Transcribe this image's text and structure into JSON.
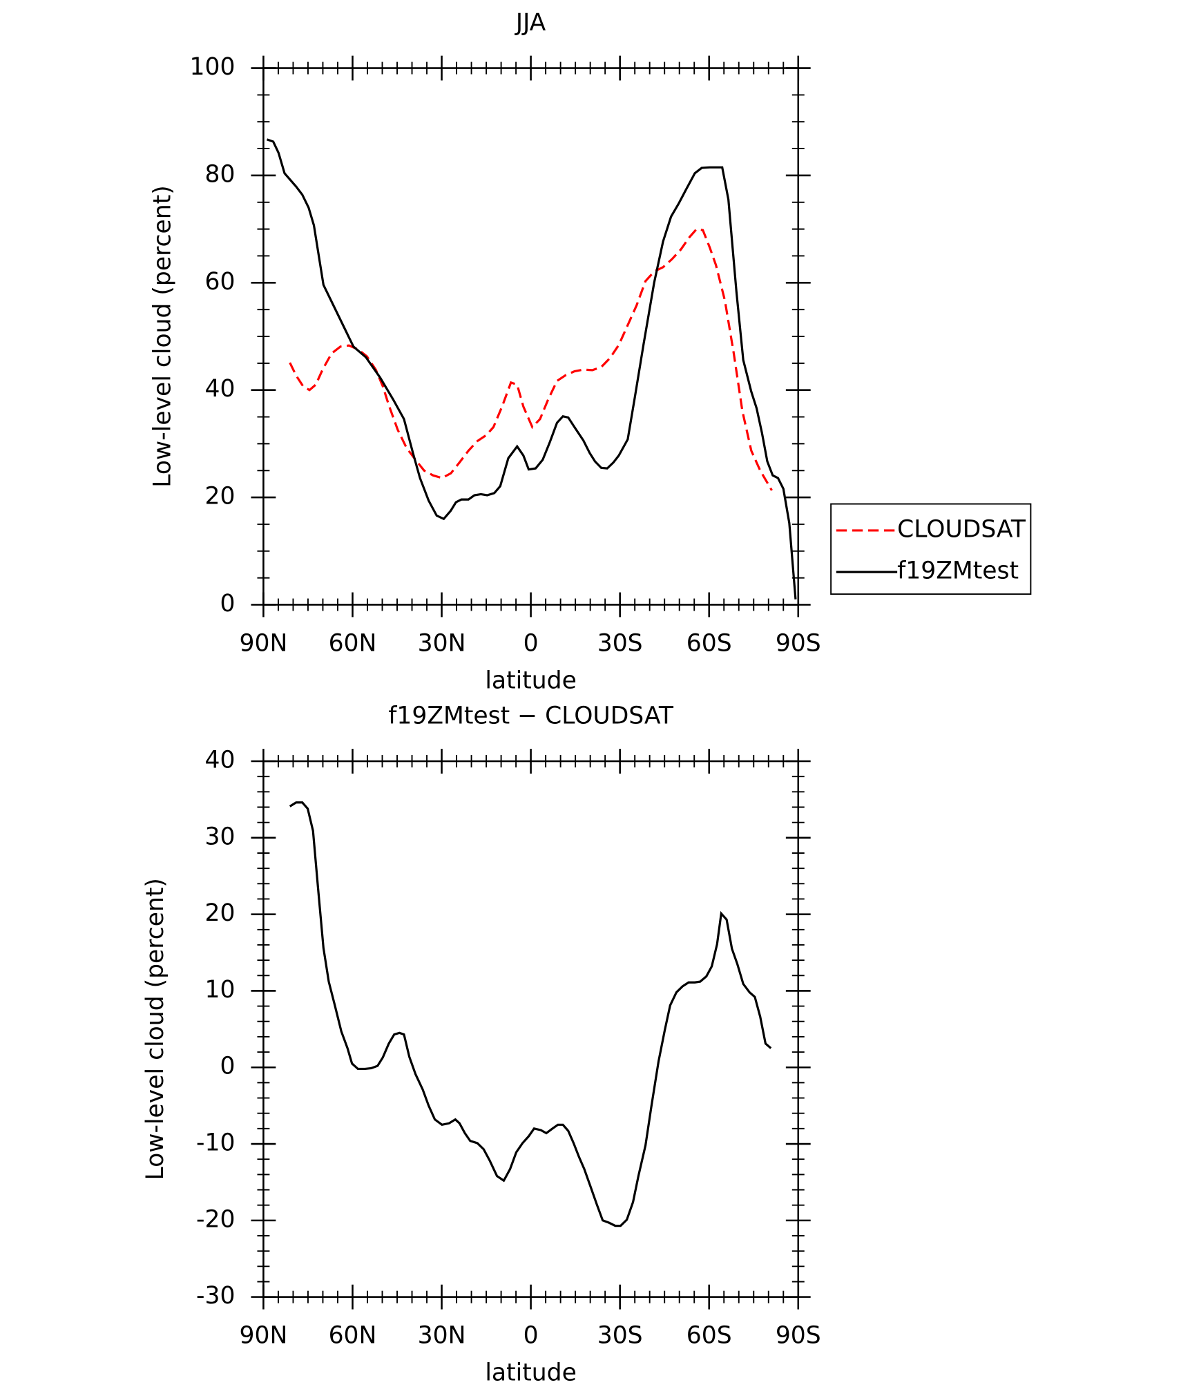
{
  "chart_data": [
    {
      "type": "line",
      "title": "JJA",
      "xlabel": "latitude",
      "ylabel": "Low-level cloud (percent)",
      "xlim": [
        90,
        -90
      ],
      "xticks": [
        {
          "value": 90,
          "label": "90N"
        },
        {
          "value": 60,
          "label": "60N"
        },
        {
          "value": 30,
          "label": "30N"
        },
        0,
        {
          "value": -30,
          "label": "30S"
        },
        {
          "value": -60,
          "label": "60S"
        },
        {
          "value": -90,
          "label": "90S"
        }
      ],
      "ylim": [
        0,
        100
      ],
      "yticks": [
        0,
        20,
        40,
        60,
        80,
        100
      ],
      "legend": "right",
      "series": [
        {
          "name": "CLOUDSAT",
          "color": "#ff0000",
          "style": "dashed",
          "x": [
            81.1,
            79.0,
            76.6,
            74.5,
            72.4,
            70.1,
            67.1,
            64.1,
            61.2,
            58.2,
            55.2,
            52.2,
            49.8,
            47.8,
            44.8,
            41.8,
            38.8,
            35.9,
            32.9,
            29.9,
            26.9,
            24.0,
            21.0,
            18.0,
            15.0,
            12.6,
            9.7,
            6.7,
            4.6,
            2.5,
            -0.5,
            -3.1,
            -5.8,
            -8.8,
            -11.8,
            -14.7,
            -17.7,
            -20.7,
            -23.7,
            -26.7,
            -29.6,
            -32.6,
            -35.6,
            -38.6,
            -41.5,
            -44.5,
            -47.5,
            -50.5,
            -53.4,
            -55.8,
            -57.9,
            -60.2,
            -62.3,
            -65.3,
            -68.3,
            -71.2,
            -74.2,
            -77.2,
            -81.1
          ],
          "values": [
            45.1,
            42.7,
            40.7,
            40.0,
            41.0,
            43.8,
            46.8,
            48.1,
            48.3,
            47.6,
            46.3,
            43.8,
            40.7,
            37.2,
            32.6,
            29.2,
            27.0,
            25.0,
            24.1,
            23.6,
            24.5,
            26.5,
            28.7,
            30.5,
            31.6,
            33.1,
            36.9,
            41.4,
            41.0,
            36.9,
            33.1,
            34.6,
            38.2,
            41.7,
            42.8,
            43.5,
            43.8,
            43.7,
            44.3,
            46.0,
            48.4,
            52.1,
            55.8,
            60.3,
            62.1,
            62.9,
            64.4,
            66.2,
            68.5,
            70.0,
            69.8,
            66.6,
            63.3,
            56.7,
            46.8,
            36.1,
            28.7,
            25.0,
            21.3
          ]
        },
        {
          "name": "f19ZMtest",
          "color": "#000000",
          "style": "solid",
          "x": [
            88.8,
            86.7,
            84.9,
            82.9,
            79.0,
            76.9,
            74.8,
            73.0,
            69.8,
            66.2,
            62.6,
            59.7,
            55.5,
            50.7,
            46.3,
            42.7,
            39.7,
            37.3,
            34.4,
            31.7,
            29.3,
            27.0,
            25.2,
            23.4,
            21.0,
            19.0,
            16.8,
            14.7,
            12.3,
            10.3,
            7.6,
            4.6,
            2.5,
            0.7,
            -1.6,
            -4.0,
            -6.4,
            -8.8,
            -10.8,
            -12.6,
            -14.7,
            -17.7,
            -19.8,
            -21.6,
            -23.7,
            -25.7,
            -27.8,
            -29.6,
            -32.6,
            -35.0,
            -37.9,
            -41.5,
            -44.5,
            -47.2,
            -49.8,
            -52.2,
            -55.2,
            -57.5,
            -60.2,
            -62.3,
            -64.4,
            -66.5,
            -69.2,
            -71.5,
            -74.2,
            -76.0,
            -77.8,
            -79.6,
            -81.4,
            -83.2,
            -85.0,
            -87.0,
            -89.1
          ],
          "values": [
            86.7,
            86.3,
            84.2,
            80.4,
            77.9,
            76.4,
            74.0,
            70.7,
            59.6,
            55.5,
            51.4,
            48.1,
            46.1,
            42.3,
            38.2,
            34.6,
            28.3,
            23.6,
            19.4,
            16.6,
            16.0,
            17.5,
            19.1,
            19.6,
            19.6,
            20.4,
            20.6,
            20.4,
            20.8,
            22.1,
            27.3,
            29.5,
            27.8,
            25.2,
            25.4,
            27.0,
            30.3,
            33.9,
            35.1,
            34.9,
            33.1,
            30.6,
            28.3,
            26.7,
            25.5,
            25.4,
            26.5,
            27.8,
            30.8,
            38.6,
            48.4,
            60.0,
            67.7,
            72.3,
            74.8,
            77.3,
            80.4,
            81.4,
            81.5,
            81.5,
            81.5,
            75.5,
            58.3,
            45.6,
            39.7,
            36.6,
            32.0,
            26.7,
            24.1,
            23.6,
            21.6,
            15.2,
            1.0
          ]
        }
      ]
    },
    {
      "type": "line",
      "title": "f19ZMtest − CLOUDSAT",
      "xlabel": "latitude",
      "ylabel": "Low-level cloud (percent)",
      "xlim": [
        90,
        -90
      ],
      "xticks": [
        {
          "value": 90,
          "label": "90N"
        },
        {
          "value": 60,
          "label": "60N"
        },
        {
          "value": 30,
          "label": "30N"
        },
        0,
        {
          "value": -30,
          "label": "30S"
        },
        {
          "value": -60,
          "label": "60S"
        },
        {
          "value": -90,
          "label": "90S"
        }
      ],
      "ylim": [
        -30,
        40
      ],
      "yticks": [
        -30,
        -20,
        -10,
        0,
        10,
        20,
        30,
        40
      ],
      "series": [
        {
          "color": "#000000",
          "style": "solid",
          "x": [
            81.1,
            79.0,
            76.9,
            75.1,
            73.3,
            71.6,
            69.8,
            68.0,
            65.9,
            63.8,
            61.7,
            60.2,
            58.2,
            55.8,
            53.7,
            51.6,
            49.8,
            47.8,
            46.0,
            44.2,
            42.7,
            40.9,
            38.8,
            36.4,
            34.4,
            32.3,
            29.9,
            27.5,
            25.4,
            24.0,
            22.2,
            20.4,
            18.0,
            15.9,
            13.8,
            11.4,
            9.1,
            7.0,
            4.9,
            2.8,
            0.7,
            -1.1,
            -3.4,
            -5.2,
            -7.3,
            -9.1,
            -10.8,
            -12.6,
            -14.4,
            -16.2,
            -18.0,
            -20.1,
            -22.2,
            -24.2,
            -26.3,
            -28.4,
            -30.2,
            -32.3,
            -34.4,
            -36.2,
            -38.6,
            -40.6,
            -43.0,
            -45.1,
            -46.9,
            -49.0,
            -51.1,
            -53.1,
            -55.2,
            -57.0,
            -59.1,
            -60.9,
            -62.7,
            -64.1,
            -65.9,
            -67.7,
            -69.5,
            -71.5,
            -73.6,
            -75.4,
            -77.2,
            -79.0,
            -80.8
          ],
          "values": [
            34.1,
            34.6,
            34.6,
            33.8,
            30.9,
            23.4,
            15.6,
            11.2,
            8.0,
            4.7,
            2.5,
            0.5,
            -0.2,
            -0.2,
            -0.1,
            0.2,
            1.3,
            3.1,
            4.3,
            4.5,
            4.3,
            1.4,
            -0.9,
            -2.9,
            -5.0,
            -6.8,
            -7.5,
            -7.3,
            -6.8,
            -7.3,
            -8.6,
            -9.6,
            -9.9,
            -10.7,
            -12.2,
            -14.2,
            -14.8,
            -13.3,
            -11.1,
            -9.9,
            -9.0,
            -8.0,
            -8.2,
            -8.6,
            -8.0,
            -7.5,
            -7.5,
            -8.3,
            -9.9,
            -11.7,
            -13.3,
            -15.6,
            -17.9,
            -20.0,
            -20.3,
            -20.7,
            -20.7,
            -19.9,
            -17.6,
            -14.2,
            -10.2,
            -5.0,
            0.8,
            4.9,
            8.1,
            9.8,
            10.6,
            11.1,
            11.1,
            11.2,
            11.9,
            13.2,
            16.1,
            20.1,
            19.3,
            15.5,
            13.5,
            10.9,
            9.8,
            9.2,
            6.6,
            3.1,
            2.5
          ]
        }
      ]
    }
  ]
}
